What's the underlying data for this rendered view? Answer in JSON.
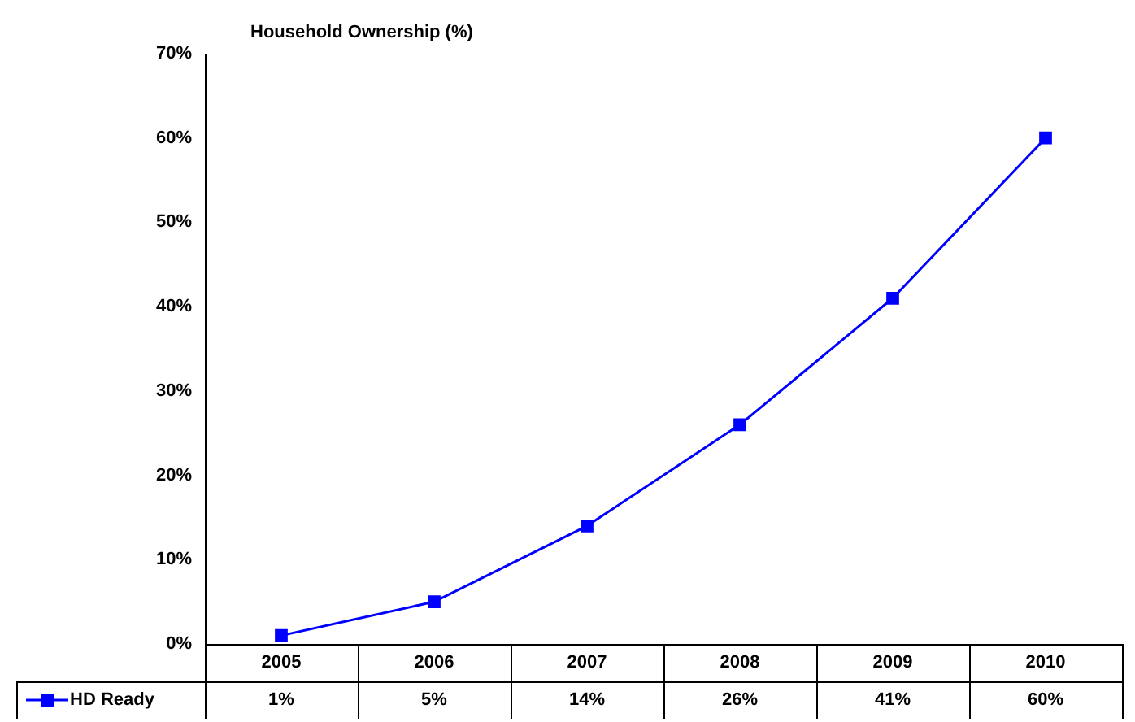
{
  "chart_data": {
    "type": "line",
    "title": "Household Ownership (%)",
    "categories": [
      "2005",
      "2006",
      "2007",
      "2008",
      "2009",
      "2010"
    ],
    "series": [
      {
        "name": "HD Ready",
        "color": "#0000ff",
        "values": [
          1,
          5,
          14,
          26,
          41,
          60
        ],
        "value_labels": [
          "1%",
          "5%",
          "14%",
          "26%",
          "41%",
          "60%"
        ]
      }
    ],
    "ylim": [
      0,
      70
    ],
    "yticks": [
      {
        "value": 0,
        "label": "0%"
      },
      {
        "value": 10,
        "label": "10%"
      },
      {
        "value": 20,
        "label": "20%"
      },
      {
        "value": 30,
        "label": "30%"
      },
      {
        "value": 40,
        "label": "40%"
      },
      {
        "value": 50,
        "label": "50%"
      },
      {
        "value": 60,
        "label": "60%"
      },
      {
        "value": 70,
        "label": "70%"
      }
    ],
    "grid": false,
    "legend": "bottom left",
    "marker": "square",
    "line_style": "solid"
  }
}
